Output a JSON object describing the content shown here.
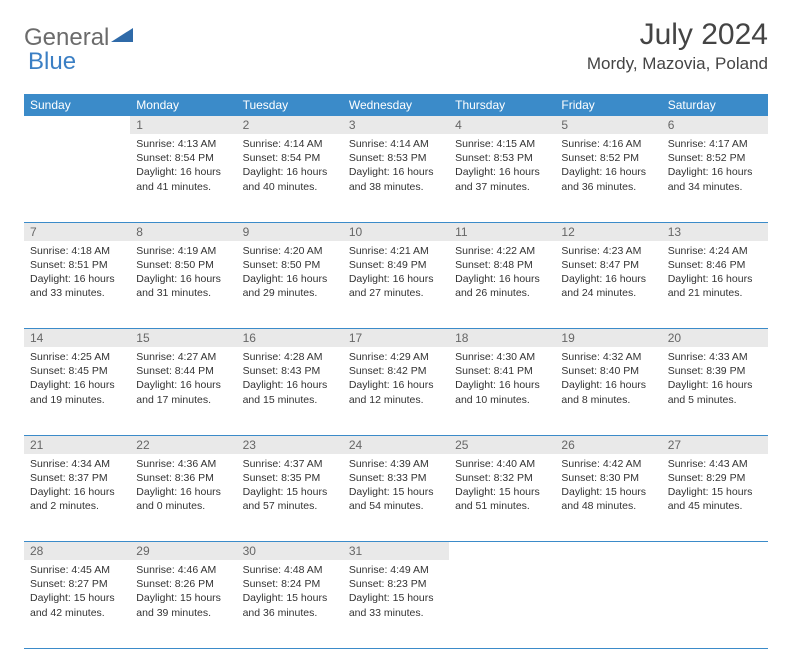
{
  "logo": {
    "part1": "General",
    "part2": "Blue"
  },
  "title": "July 2024",
  "location": "Mordy, Mazovia, Poland",
  "colors": {
    "header_bg": "#3b8bc9",
    "header_text": "#ffffff",
    "daynum_bg": "#e9e9e9",
    "border": "#3b8bc9",
    "text": "#333333",
    "logo_gray": "#6b6b6b",
    "logo_blue": "#3b7fc4"
  },
  "day_headers": [
    "Sunday",
    "Monday",
    "Tuesday",
    "Wednesday",
    "Thursday",
    "Friday",
    "Saturday"
  ],
  "weeks": [
    {
      "nums": [
        "",
        "1",
        "2",
        "3",
        "4",
        "5",
        "6"
      ],
      "cells": [
        null,
        {
          "sunrise": "4:13 AM",
          "sunset": "8:54 PM",
          "daylight": "16 hours and 41 minutes."
        },
        {
          "sunrise": "4:14 AM",
          "sunset": "8:54 PM",
          "daylight": "16 hours and 40 minutes."
        },
        {
          "sunrise": "4:14 AM",
          "sunset": "8:53 PM",
          "daylight": "16 hours and 38 minutes."
        },
        {
          "sunrise": "4:15 AM",
          "sunset": "8:53 PM",
          "daylight": "16 hours and 37 minutes."
        },
        {
          "sunrise": "4:16 AM",
          "sunset": "8:52 PM",
          "daylight": "16 hours and 36 minutes."
        },
        {
          "sunrise": "4:17 AM",
          "sunset": "8:52 PM",
          "daylight": "16 hours and 34 minutes."
        }
      ]
    },
    {
      "nums": [
        "7",
        "8",
        "9",
        "10",
        "11",
        "12",
        "13"
      ],
      "cells": [
        {
          "sunrise": "4:18 AM",
          "sunset": "8:51 PM",
          "daylight": "16 hours and 33 minutes."
        },
        {
          "sunrise": "4:19 AM",
          "sunset": "8:50 PM",
          "daylight": "16 hours and 31 minutes."
        },
        {
          "sunrise": "4:20 AM",
          "sunset": "8:50 PM",
          "daylight": "16 hours and 29 minutes."
        },
        {
          "sunrise": "4:21 AM",
          "sunset": "8:49 PM",
          "daylight": "16 hours and 27 minutes."
        },
        {
          "sunrise": "4:22 AM",
          "sunset": "8:48 PM",
          "daylight": "16 hours and 26 minutes."
        },
        {
          "sunrise": "4:23 AM",
          "sunset": "8:47 PM",
          "daylight": "16 hours and 24 minutes."
        },
        {
          "sunrise": "4:24 AM",
          "sunset": "8:46 PM",
          "daylight": "16 hours and 21 minutes."
        }
      ]
    },
    {
      "nums": [
        "14",
        "15",
        "16",
        "17",
        "18",
        "19",
        "20"
      ],
      "cells": [
        {
          "sunrise": "4:25 AM",
          "sunset": "8:45 PM",
          "daylight": "16 hours and 19 minutes."
        },
        {
          "sunrise": "4:27 AM",
          "sunset": "8:44 PM",
          "daylight": "16 hours and 17 minutes."
        },
        {
          "sunrise": "4:28 AM",
          "sunset": "8:43 PM",
          "daylight": "16 hours and 15 minutes."
        },
        {
          "sunrise": "4:29 AM",
          "sunset": "8:42 PM",
          "daylight": "16 hours and 12 minutes."
        },
        {
          "sunrise": "4:30 AM",
          "sunset": "8:41 PM",
          "daylight": "16 hours and 10 minutes."
        },
        {
          "sunrise": "4:32 AM",
          "sunset": "8:40 PM",
          "daylight": "16 hours and 8 minutes."
        },
        {
          "sunrise": "4:33 AM",
          "sunset": "8:39 PM",
          "daylight": "16 hours and 5 minutes."
        }
      ]
    },
    {
      "nums": [
        "21",
        "22",
        "23",
        "24",
        "25",
        "26",
        "27"
      ],
      "cells": [
        {
          "sunrise": "4:34 AM",
          "sunset": "8:37 PM",
          "daylight": "16 hours and 2 minutes."
        },
        {
          "sunrise": "4:36 AM",
          "sunset": "8:36 PM",
          "daylight": "16 hours and 0 minutes."
        },
        {
          "sunrise": "4:37 AM",
          "sunset": "8:35 PM",
          "daylight": "15 hours and 57 minutes."
        },
        {
          "sunrise": "4:39 AM",
          "sunset": "8:33 PM",
          "daylight": "15 hours and 54 minutes."
        },
        {
          "sunrise": "4:40 AM",
          "sunset": "8:32 PM",
          "daylight": "15 hours and 51 minutes."
        },
        {
          "sunrise": "4:42 AM",
          "sunset": "8:30 PM",
          "daylight": "15 hours and 48 minutes."
        },
        {
          "sunrise": "4:43 AM",
          "sunset": "8:29 PM",
          "daylight": "15 hours and 45 minutes."
        }
      ]
    },
    {
      "nums": [
        "28",
        "29",
        "30",
        "31",
        "",
        "",
        ""
      ],
      "cells": [
        {
          "sunrise": "4:45 AM",
          "sunset": "8:27 PM",
          "daylight": "15 hours and 42 minutes."
        },
        {
          "sunrise": "4:46 AM",
          "sunset": "8:26 PM",
          "daylight": "15 hours and 39 minutes."
        },
        {
          "sunrise": "4:48 AM",
          "sunset": "8:24 PM",
          "daylight": "15 hours and 36 minutes."
        },
        {
          "sunrise": "4:49 AM",
          "sunset": "8:23 PM",
          "daylight": "15 hours and 33 minutes."
        },
        null,
        null,
        null
      ]
    }
  ],
  "labels": {
    "sunrise": "Sunrise:",
    "sunset": "Sunset:",
    "daylight": "Daylight:"
  }
}
